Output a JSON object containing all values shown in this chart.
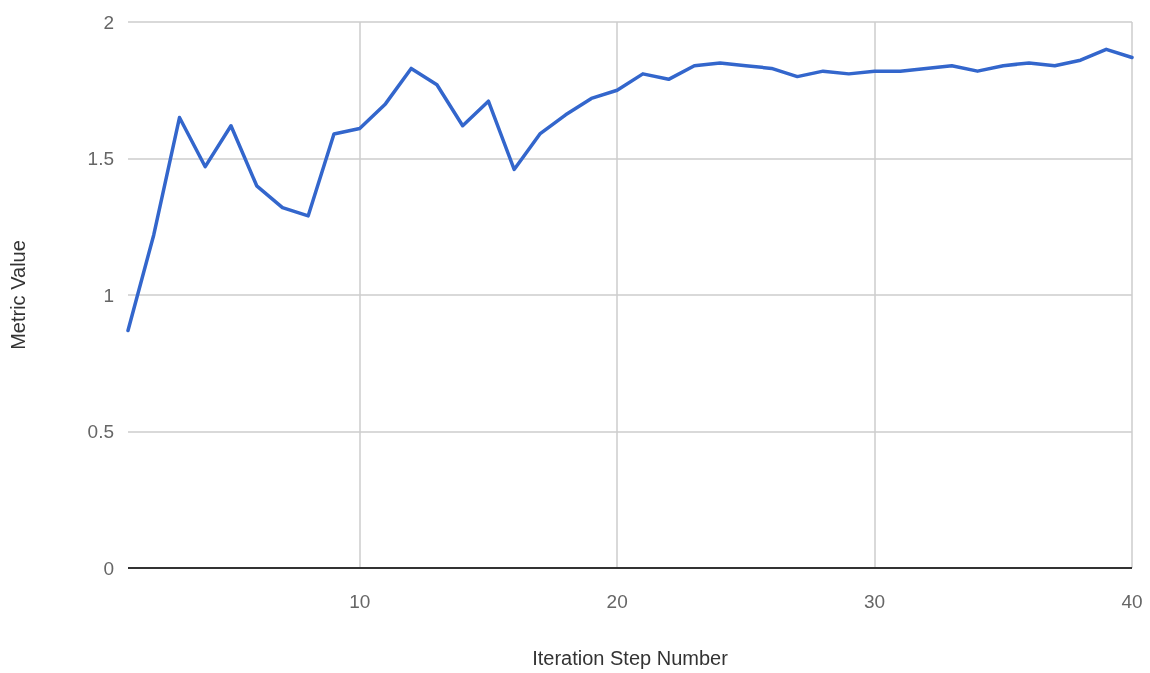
{
  "chart_data": {
    "type": "line",
    "xlabel": "Iteration Step Number",
    "ylabel": "Metric Value",
    "x": [
      1,
      2,
      3,
      4,
      5,
      6,
      7,
      8,
      9,
      10,
      11,
      12,
      13,
      14,
      15,
      16,
      17,
      18,
      19,
      20,
      21,
      22,
      23,
      24,
      25,
      26,
      27,
      28,
      29,
      30,
      31,
      32,
      33,
      34,
      35,
      36,
      37,
      38,
      39,
      40
    ],
    "series": [
      {
        "color": "#3366cc",
        "values": [
          0.87,
          1.22,
          1.65,
          1.47,
          1.62,
          1.4,
          1.32,
          1.29,
          1.59,
          1.61,
          1.7,
          1.83,
          1.77,
          1.62,
          1.71,
          1.46,
          1.59,
          1.66,
          1.72,
          1.75,
          1.81,
          1.79,
          1.84,
          1.85,
          1.84,
          1.83,
          1.8,
          1.82,
          1.81,
          1.82,
          1.82,
          1.83,
          1.84,
          1.82,
          1.84,
          1.85,
          1.84,
          1.86,
          1.9,
          1.87
        ]
      }
    ],
    "xlim": [
      1,
      40
    ],
    "xticks": [
      10,
      20,
      30,
      40
    ],
    "ylim": [
      0,
      2
    ],
    "yticks": [
      0,
      0.5,
      1,
      1.5,
      2
    ],
    "grid": true,
    "marker": "none",
    "line_style": "solid"
  }
}
